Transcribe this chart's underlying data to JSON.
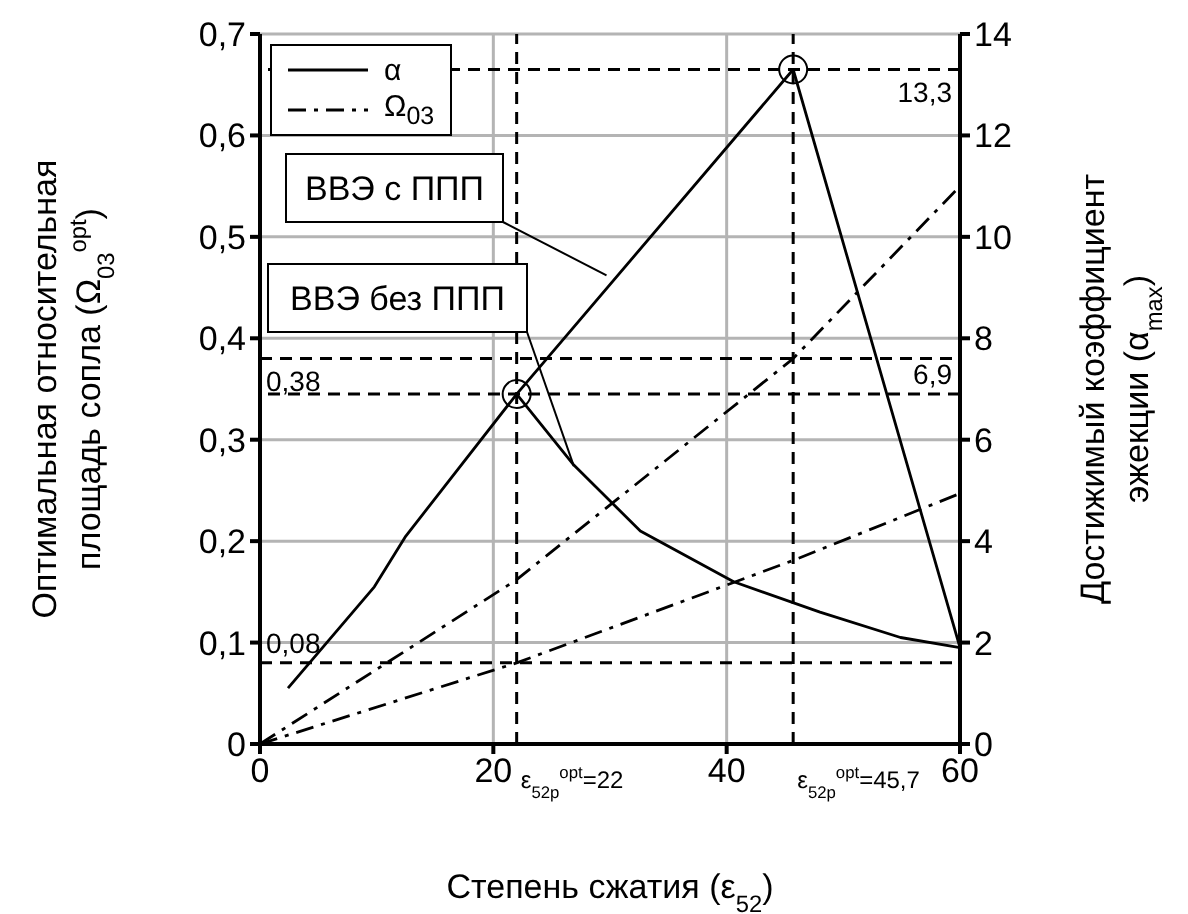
{
  "chart_data": {
    "type": "line",
    "xlabel": "Степень сжатия (ε$_{52}$)",
    "ylabel": "Оптимальная относительная\nплощадь сопла (Ω$_{03}$$^{opt}$)",
    "y2label": "Достижимый коэффициент\nэжекции (α$_{max}$)",
    "xlim": [
      0,
      60
    ],
    "xticks": [
      0,
      20,
      40,
      60
    ],
    "ylim": [
      0,
      0.7
    ],
    "yticks": [
      0,
      {
        "value": 0.1,
        "label": "0,1"
      },
      {
        "value": 0.2,
        "label": "0,2"
      },
      {
        "value": 0.3,
        "label": "0,3"
      },
      {
        "value": 0.4,
        "label": "0,4"
      },
      {
        "value": 0.5,
        "label": "0,5"
      },
      {
        "value": 0.6,
        "label": "0,6"
      },
      {
        "value": 0.7,
        "label": "0,7"
      }
    ],
    "y2lim": [
      0,
      14
    ],
    "y2ticks": [
      0,
      2,
      4,
      6,
      8,
      10,
      12,
      14
    ],
    "grid": true,
    "legend": "top left",
    "marker": "none",
    "series": [
      {
        "name": "α",
        "color": "#000000",
        "axis": "y2",
        "line_style": "solid",
        "x": [
          2.4,
          9.8,
          12.5,
          22,
          26.9,
          32.6,
          40.6,
          48,
          54.9,
          60
        ],
        "values": [
          1.1,
          3.1,
          4.1,
          6.9,
          5.5,
          4.2,
          3.2,
          2.6,
          2.1,
          1.9
        ]
      },
      {
        "color": "#000000",
        "axis": "y2",
        "line_style": "solid",
        "x": [
          22,
          45.7,
          60
        ],
        "values": [
          6.9,
          13.3,
          1.9
        ]
      },
      {
        "name": "Ω$_{03}$",
        "color": "#000000",
        "line_style": "dashed",
        "x": [
          0,
          22,
          45.7,
          60
        ],
        "values": [
          0,
          0.162,
          0.38,
          0.55
        ]
      },
      {
        "color": "#000000",
        "line_style": "dashed",
        "x": [
          0,
          22,
          45.7,
          60
        ],
        "values": [
          0,
          0.08,
          0.181,
          0.247
        ]
      },
      {
        "type": "scatter",
        "color": "#000000",
        "axis": "y2",
        "marker": "circle",
        "x": [
          22,
          45.7
        ],
        "values": [
          6.9,
          13.3
        ]
      }
    ],
    "ref_lines": [
      {
        "axis": "y",
        "value": 0.38,
        "label": "0,38",
        "line_style": "dashed"
      },
      {
        "axis": "y",
        "value": 0.08,
        "label": "0,08",
        "line_style": "dashed"
      },
      {
        "axis": "y2",
        "value": 13.3,
        "label": "13,3",
        "line_style": "dashed"
      },
      {
        "axis": "y2",
        "value": 6.9,
        "label": "6,9",
        "line_style": "dashed"
      },
      {
        "axis": "x",
        "value": 22,
        "label": "ε$_{52p}$$^{opt}$=22",
        "line_style": "dashed"
      },
      {
        "axis": "x",
        "value": 45.7,
        "label": "ε$_{52p}$$^{opt}$=45,7",
        "line_style": "dashed"
      }
    ],
    "annotations": [
      {
        "text": "ВВЭ с ППП",
        "x": 29.7,
        "y": 0.462
      },
      {
        "text": "ВВЭ без ППП",
        "x": 26.9,
        "y": 0.274
      }
    ]
  }
}
